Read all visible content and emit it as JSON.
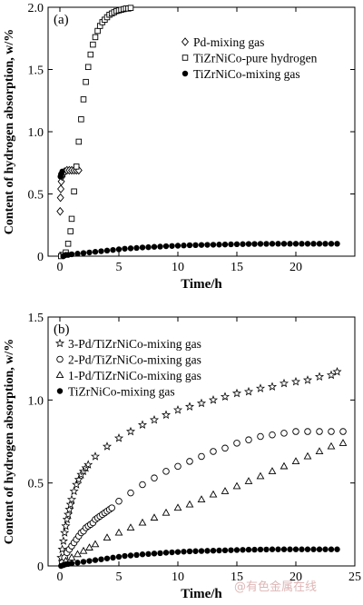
{
  "chart_data": [
    {
      "panel_label": "(a)",
      "type": "scatter",
      "xlabel": "Time/h",
      "ylabel": "Content of hydrogen absorption, w/%",
      "xlim": [
        -1,
        25
      ],
      "ylim": [
        0,
        2.0
      ],
      "xticks": [
        0,
        5,
        10,
        15,
        20
      ],
      "xtick_labels": [
        "0",
        "5",
        "10",
        "15",
        "20"
      ],
      "yticks": [
        0,
        0.5,
        1.0,
        1.5,
        2.0
      ],
      "ytick_labels": [
        "0",
        "0.5",
        "1.0",
        "1.5",
        "2.0"
      ],
      "legend_position": "top-right",
      "series": [
        {
          "name": "Pd-mixing gas",
          "marker": "diamond",
          "x": [
            0.02,
            0.05,
            0.08,
            0.12,
            0.18,
            0.25,
            0.4,
            0.6,
            0.8,
            1.0,
            1.2,
            1.4,
            1.6
          ],
          "y": [
            0.36,
            0.47,
            0.54,
            0.6,
            0.64,
            0.66,
            0.68,
            0.69,
            0.69,
            0.69,
            0.69,
            0.69,
            0.69
          ]
        },
        {
          "name": "TiZrNiCo-pure hydrogen",
          "marker": "square",
          "x": [
            0.1,
            0.3,
            0.5,
            0.7,
            0.9,
            1.0,
            1.2,
            1.4,
            1.6,
            1.8,
            2.0,
            2.2,
            2.4,
            2.6,
            2.8,
            3.0,
            3.2,
            3.4,
            3.6,
            3.8,
            4.0,
            4.2,
            4.4,
            4.6,
            4.8,
            5.0,
            5.2,
            5.4,
            5.6,
            5.8,
            6.0
          ],
          "y": [
            0.0,
            0.01,
            0.03,
            0.1,
            0.2,
            0.3,
            0.52,
            0.72,
            0.92,
            1.1,
            1.26,
            1.4,
            1.52,
            1.62,
            1.7,
            1.76,
            1.81,
            1.85,
            1.88,
            1.9,
            1.92,
            1.94,
            1.95,
            1.96,
            1.97,
            1.975,
            1.98,
            1.985,
            1.99,
            1.99,
            1.995
          ]
        },
        {
          "name": "TiZrNiCo-mixing gas",
          "marker": "filled-circle",
          "x": [
            0.05,
            0.1,
            0.2,
            0.3,
            0.5,
            0.7,
            1.0,
            1.5,
            2.0,
            2.5,
            3.0,
            3.5,
            4.0,
            4.5,
            5.0,
            5.5,
            6.0,
            6.5,
            7.0,
            7.5,
            8.0,
            8.5,
            9.0,
            9.5,
            10.0,
            10.5,
            11.0,
            11.5,
            12.0,
            12.5,
            13.0,
            13.5,
            14.0,
            14.5,
            15.0,
            15.5,
            16.0,
            16.5,
            17.0,
            17.5,
            18.0,
            18.5,
            19.0,
            19.5,
            20.0,
            20.5,
            21.0,
            21.5,
            22.0,
            22.5,
            23.0,
            23.5
          ],
          "y": [
            0.64,
            0.66,
            0.68,
            0.0,
            0.01,
            0.01,
            0.015,
            0.02,
            0.025,
            0.03,
            0.035,
            0.04,
            0.045,
            0.05,
            0.055,
            0.06,
            0.063,
            0.066,
            0.07,
            0.072,
            0.075,
            0.077,
            0.08,
            0.082,
            0.084,
            0.086,
            0.088,
            0.089,
            0.09,
            0.091,
            0.092,
            0.093,
            0.094,
            0.095,
            0.096,
            0.097,
            0.098,
            0.098,
            0.099,
            0.099,
            0.1,
            0.1,
            0.1,
            0.1,
            0.1,
            0.1,
            0.1,
            0.1,
            0.1,
            0.1,
            0.1,
            0.1
          ]
        }
      ]
    },
    {
      "panel_label": "(b)",
      "type": "scatter",
      "xlabel": "Time/h",
      "ylabel": "Content of hydrogen absorption, w/%",
      "xlim": [
        -1,
        25
      ],
      "ylim": [
        0,
        1.5
      ],
      "xticks": [
        0,
        5,
        10,
        15,
        20,
        25
      ],
      "xtick_labels": [
        "0",
        "5",
        "10",
        "15",
        "20",
        "25"
      ],
      "yticks": [
        0,
        0.5,
        1.0,
        1.5
      ],
      "ytick_labels": [
        "0",
        "0.5",
        "1.0",
        "1.5"
      ],
      "legend_position": "top-left",
      "series": [
        {
          "name": "3-Pd/TiZrNiCo-mixing gas",
          "marker": "star",
          "x": [
            0.1,
            0.2,
            0.3,
            0.4,
            0.5,
            0.6,
            0.7,
            0.8,
            0.9,
            1.0,
            1.2,
            1.4,
            1.6,
            1.8,
            2.0,
            2.2,
            2.4,
            3.0,
            4.0,
            5.0,
            6.0,
            7.0,
            8.0,
            9.0,
            10.0,
            11.0,
            12.0,
            13.0,
            14.0,
            15.0,
            16.0,
            17.0,
            18.0,
            19.0,
            20.0,
            21.0,
            22.0,
            23.0,
            23.5
          ],
          "y": [
            0.05,
            0.1,
            0.15,
            0.2,
            0.24,
            0.28,
            0.31,
            0.34,
            0.37,
            0.4,
            0.45,
            0.49,
            0.52,
            0.55,
            0.57,
            0.59,
            0.61,
            0.66,
            0.72,
            0.77,
            0.81,
            0.85,
            0.88,
            0.91,
            0.94,
            0.96,
            0.98,
            1.0,
            1.02,
            1.04,
            1.05,
            1.07,
            1.08,
            1.1,
            1.11,
            1.12,
            1.14,
            1.15,
            1.17
          ]
        },
        {
          "name": "2-Pd/TiZrNiCo-mixing gas",
          "marker": "open-circle",
          "x": [
            0.2,
            0.4,
            0.6,
            0.8,
            1.0,
            1.2,
            1.4,
            1.6,
            1.8,
            2.0,
            2.2,
            2.4,
            2.6,
            2.8,
            3.0,
            3.2,
            3.4,
            3.6,
            3.8,
            4.0,
            4.2,
            4.4,
            5.0,
            6.0,
            7.0,
            8.0,
            9.0,
            10.0,
            11.0,
            12.0,
            13.0,
            14.0,
            15.0,
            16.0,
            17.0,
            18.0,
            19.0,
            20.0,
            21.0,
            22.0,
            23.0,
            24.0
          ],
          "y": [
            0.02,
            0.05,
            0.08,
            0.1,
            0.12,
            0.14,
            0.16,
            0.18,
            0.2,
            0.21,
            0.23,
            0.24,
            0.25,
            0.26,
            0.28,
            0.29,
            0.3,
            0.31,
            0.32,
            0.33,
            0.34,
            0.35,
            0.39,
            0.44,
            0.49,
            0.53,
            0.57,
            0.6,
            0.63,
            0.66,
            0.69,
            0.71,
            0.74,
            0.76,
            0.78,
            0.79,
            0.8,
            0.81,
            0.81,
            0.81,
            0.81,
            0.81
          ]
        },
        {
          "name": "1-Pd/TiZrNiCo-mixing gas",
          "marker": "triangle",
          "x": [
            0.5,
            1.0,
            1.5,
            2.0,
            2.5,
            3.0,
            4.0,
            5.0,
            6.0,
            7.0,
            8.0,
            9.0,
            10.0,
            11.0,
            12.0,
            13.0,
            14.0,
            15.0,
            16.0,
            17.0,
            18.0,
            19.0,
            20.0,
            21.0,
            22.0,
            23.0,
            24.0
          ],
          "y": [
            0.03,
            0.05,
            0.07,
            0.09,
            0.11,
            0.13,
            0.17,
            0.2,
            0.23,
            0.26,
            0.29,
            0.32,
            0.35,
            0.37,
            0.4,
            0.43,
            0.45,
            0.48,
            0.51,
            0.54,
            0.57,
            0.6,
            0.63,
            0.66,
            0.69,
            0.72,
            0.74
          ]
        },
        {
          "name": "TiZrNiCo-mixing gas",
          "marker": "filled-circle",
          "x": [
            0.1,
            0.3,
            0.5,
            0.7,
            1.0,
            1.5,
            2.0,
            2.5,
            3.0,
            3.5,
            4.0,
            4.5,
            5.0,
            5.5,
            6.0,
            6.5,
            7.0,
            7.5,
            8.0,
            8.5,
            9.0,
            9.5,
            10.0,
            10.5,
            11.0,
            11.5,
            12.0,
            12.5,
            13.0,
            13.5,
            14.0,
            14.5,
            15.0,
            15.5,
            16.0,
            16.5,
            17.0,
            17.5,
            18.0,
            18.5,
            19.0,
            19.5,
            20.0,
            20.5,
            21.0,
            21.5,
            22.0,
            22.5,
            23.0,
            23.5
          ],
          "y": [
            0.0,
            0.005,
            0.01,
            0.012,
            0.015,
            0.02,
            0.025,
            0.03,
            0.035,
            0.04,
            0.045,
            0.05,
            0.055,
            0.06,
            0.063,
            0.066,
            0.07,
            0.072,
            0.075,
            0.077,
            0.08,
            0.082,
            0.084,
            0.086,
            0.088,
            0.089,
            0.09,
            0.091,
            0.092,
            0.093,
            0.094,
            0.095,
            0.096,
            0.097,
            0.098,
            0.098,
            0.099,
            0.099,
            0.1,
            0.1,
            0.1,
            0.1,
            0.1,
            0.1,
            0.1,
            0.1,
            0.1,
            0.1,
            0.1,
            0.1
          ]
        }
      ]
    }
  ],
  "watermark": "@有色金属在线"
}
